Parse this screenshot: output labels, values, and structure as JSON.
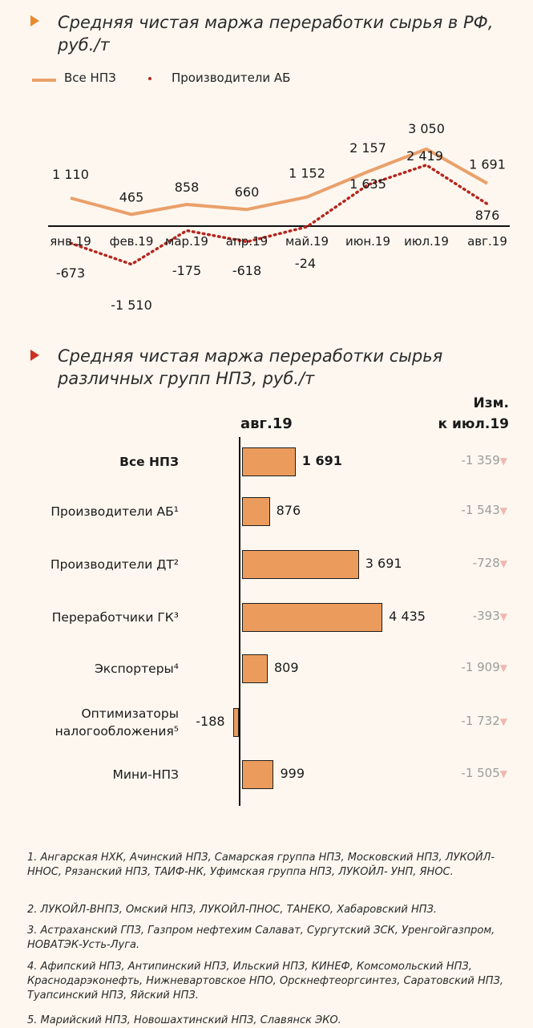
{
  "chart_data": [
    {
      "type": "line",
      "title": "Средняя чистая маржа переработки сырья в РФ, руб./т",
      "categories": [
        "янв.19",
        "фев.19",
        "мар.19",
        "апр.19",
        "май.19",
        "июн.19",
        "июл.19",
        "авг.19"
      ],
      "series": [
        {
          "name": "Все НПЗ",
          "style": "solid",
          "color": "#eaa06a",
          "values": [
            1110,
            465,
            858,
            660,
            1152,
            2157,
            3050,
            1691
          ],
          "labels": [
            "1 110",
            "465",
            "858",
            "660",
            "1 152",
            "2 157",
            "3 050",
            "1 691"
          ]
        },
        {
          "name": "Производители АБ",
          "style": "dotted",
          "color": "#b5261e",
          "values": [
            -673,
            -1510,
            -175,
            -618,
            -24,
            1635,
            2419,
            876
          ],
          "labels": [
            "-673",
            "-1 510",
            "-175",
            "-618",
            "-24",
            "1 635",
            "2 419",
            "876"
          ]
        }
      ],
      "legend": "top-left"
    },
    {
      "type": "bar",
      "orientation": "horizontal",
      "title": "Средняя чистая маржа переработки сырья различных групп НПЗ, руб./т",
      "column_header": "авг.19",
      "change_header": [
        "Изм.",
        "к июл.19"
      ],
      "categories": [
        [
          "Все НПЗ"
        ],
        [
          "Производители АБ¹"
        ],
        [
          "Производители ДТ²"
        ],
        [
          "Переработчики ГК³"
        ],
        [
          "Экспортеры⁴"
        ],
        [
          "Оптимизаторы",
          "налогообложения⁵"
        ],
        [
          "Мини-НПЗ"
        ]
      ],
      "values": [
        1691,
        876,
        3691,
        4435,
        809,
        -188,
        999
      ],
      "value_labels": [
        "1 691",
        "876",
        "3 691",
        "4 435",
        "809",
        "-188",
        "999"
      ],
      "changes": [
        "-1 359",
        "-1 543",
        "-728",
        "-393",
        "-1 909",
        "-1 732",
        "-1 505"
      ],
      "bar_color": "#eb9c5d"
    }
  ],
  "footnotes": [
    "1. Ангарская НХК, Ачинский НПЗ, Самарская группа НПЗ, Московский НПЗ, ЛУКОЙЛ-ННОС, Рязанский НПЗ, ТАИФ-НК, Уфимская группа НПЗ, ЛУКОЙЛ- УНП, ЯНОС.",
    "2. ЛУКОЙЛ-ВНПЗ, Омский НПЗ, ЛУКОЙЛ-ПНОС, ТАНЕКО, Хабаровский НПЗ.",
    "3. Астраханский ГПЗ, Газпром нефтехим Салават, Сургутский ЗСК, Уренгойгазпром, НОВАТЭК-Усть-Луга.",
    "4. Афипский НПЗ, Антипинский НПЗ, Ильский НПЗ, КИНЕФ, Комсомольский НПЗ, Краснодарэконефть, Нижневартовское НПО, Орскнефтеоргсинтез, Саратовский НПЗ, Туапсинский НПЗ, Яйский НПЗ.",
    "5. Марийский НПЗ, Новошахтинский НПЗ, Славянск ЭКО."
  ],
  "colors": {
    "accent": "#eaa06a",
    "bar": "#eb9c5d",
    "dotted": "#b5261e",
    "arrow1": "#e58a2e",
    "arrow2": "#cc3322",
    "background": "#fdf7ef"
  }
}
